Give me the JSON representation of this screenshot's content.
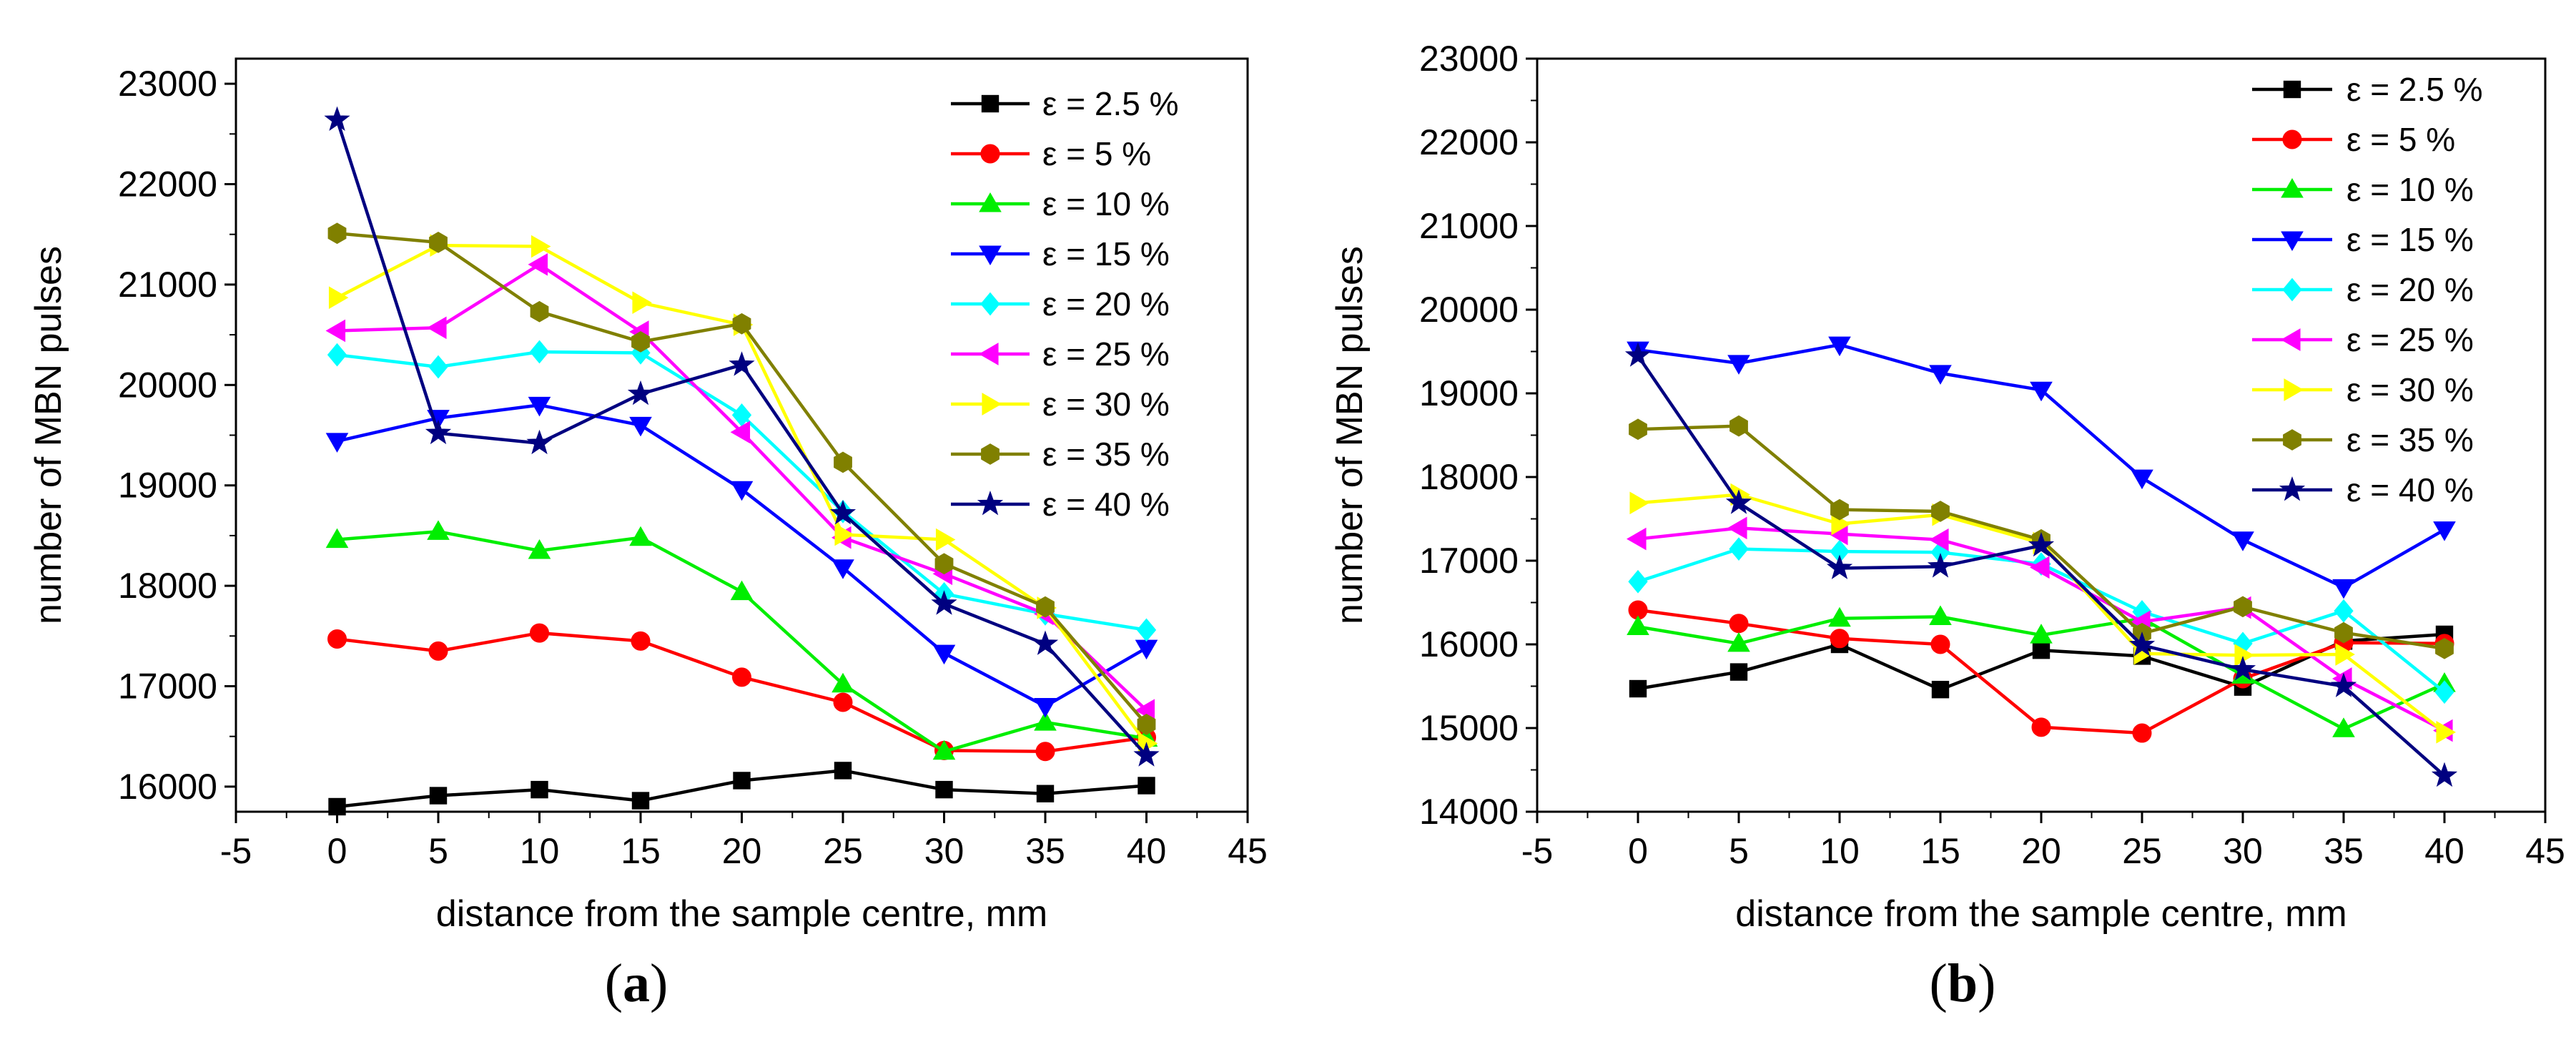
{
  "chart_data": [
    {
      "type": "line",
      "panel_label": "(a)",
      "title": "",
      "xlabel": "distance from the sample centre, mm",
      "ylabel": "number of MBN pulses",
      "xlim": [
        -5,
        45
      ],
      "ylim": [
        15750,
        23250
      ],
      "xticks": [
        -5,
        0,
        5,
        10,
        15,
        20,
        25,
        30,
        35,
        40,
        45
      ],
      "yticks": [
        16000,
        17000,
        18000,
        19000,
        20000,
        21000,
        22000,
        23000
      ],
      "x": [
        0,
        5,
        10,
        15,
        20,
        25,
        30,
        35,
        40
      ],
      "legend_position": "top-right",
      "series": [
        {
          "name": "ε = 2.5 %",
          "color": "#000000",
          "marker": "square",
          "values": [
            15800,
            15910,
            15970,
            15860,
            16060,
            16160,
            15970,
            15930,
            16010
          ]
        },
        {
          "name": "ε = 5 %",
          "color": "#ff0000",
          "marker": "circle",
          "values": [
            17470,
            17350,
            17530,
            17450,
            17090,
            16840,
            16360,
            16350,
            16490
          ]
        },
        {
          "name": "ε = 10 %",
          "color": "#00ee00",
          "marker": "triangle-up",
          "values": [
            18460,
            18540,
            18350,
            18480,
            17940,
            17020,
            16350,
            16640,
            16480
          ]
        },
        {
          "name": "ε = 15 %",
          "color": "#0000ff",
          "marker": "triangle-down",
          "values": [
            19440,
            19670,
            19800,
            19600,
            18960,
            18180,
            17330,
            16800,
            17380
          ]
        },
        {
          "name": "ε = 20 %",
          "color": "#00ffff",
          "marker": "diamond",
          "values": [
            20300,
            20180,
            20330,
            20320,
            19700,
            18740,
            17920,
            17720,
            17560
          ]
        },
        {
          "name": "ε = 25 %",
          "color": "#ff00ff",
          "marker": "triangle-left",
          "values": [
            20540,
            20570,
            21200,
            20530,
            19530,
            18480,
            18120,
            17720,
            16760
          ]
        },
        {
          "name": "ε = 30 %",
          "color": "#ffff00",
          "marker": "triangle-right",
          "values": [
            20870,
            21390,
            21380,
            20820,
            20600,
            18510,
            18460,
            17780,
            16430
          ]
        },
        {
          "name": "ε = 35 %",
          "color": "#808000",
          "marker": "hexagon",
          "values": [
            21510,
            21420,
            20730,
            20430,
            20610,
            19230,
            18220,
            17790,
            16620
          ]
        },
        {
          "name": "ε = 40 %",
          "color": "#000080",
          "marker": "star",
          "values": [
            22640,
            19520,
            19420,
            19910,
            20200,
            18720,
            17820,
            17420,
            16310
          ]
        }
      ]
    },
    {
      "type": "line",
      "panel_label": "(b)",
      "title": "",
      "xlabel": "distance from the sample centre, mm",
      "ylabel": "number of MBN pulses",
      "xlim": [
        -5,
        45
      ],
      "ylim": [
        14000,
        23000
      ],
      "xticks": [
        -5,
        0,
        5,
        10,
        15,
        20,
        25,
        30,
        35,
        40,
        45
      ],
      "yticks": [
        14000,
        15000,
        16000,
        17000,
        18000,
        19000,
        20000,
        21000,
        22000,
        23000
      ],
      "x": [
        0,
        5,
        10,
        15,
        20,
        25,
        30,
        35,
        40
      ],
      "legend_position": "top-right",
      "series": [
        {
          "name": "ε = 2.5 %",
          "color": "#000000",
          "marker": "square",
          "values": [
            15470,
            15670,
            16000,
            15460,
            15930,
            15860,
            15490,
            16040,
            16120
          ]
        },
        {
          "name": "ε = 5 %",
          "color": "#ff0000",
          "marker": "circle",
          "values": [
            16410,
            16250,
            16070,
            16000,
            15010,
            14940,
            15590,
            16020,
            16010
          ]
        },
        {
          "name": "ε = 10 %",
          "color": "#00ee00",
          "marker": "triangle-up",
          "values": [
            16210,
            16010,
            16310,
            16330,
            16110,
            16310,
            15630,
            14990,
            15530
          ]
        },
        {
          "name": "ε = 15 %",
          "color": "#0000ff",
          "marker": "triangle-down",
          "values": [
            19520,
            19360,
            19580,
            19240,
            19040,
            17990,
            17250,
            16680,
            17370
          ]
        },
        {
          "name": "ε = 20 %",
          "color": "#00ffff",
          "marker": "diamond",
          "values": [
            16750,
            17140,
            17110,
            17100,
            16960,
            16390,
            16010,
            16400,
            15430
          ]
        },
        {
          "name": "ε = 25 %",
          "color": "#ff00ff",
          "marker": "triangle-left",
          "values": [
            17260,
            17390,
            17320,
            17250,
            16920,
            16270,
            16440,
            15590,
            14970
          ]
        },
        {
          "name": "ε = 30 %",
          "color": "#ffff00",
          "marker": "triangle-right",
          "values": [
            17690,
            17790,
            17440,
            17550,
            17210,
            15890,
            15870,
            15880,
            14950
          ]
        },
        {
          "name": "ε = 35 %",
          "color": "#808000",
          "marker": "hexagon",
          "values": [
            18570,
            18610,
            17610,
            17590,
            17250,
            16130,
            16450,
            16140,
            15950
          ]
        },
        {
          "name": "ε = 40 %",
          "color": "#000080",
          "marker": "star",
          "values": [
            19450,
            17690,
            16910,
            16930,
            17180,
            15990,
            15700,
            15500,
            14430
          ]
        }
      ]
    }
  ]
}
